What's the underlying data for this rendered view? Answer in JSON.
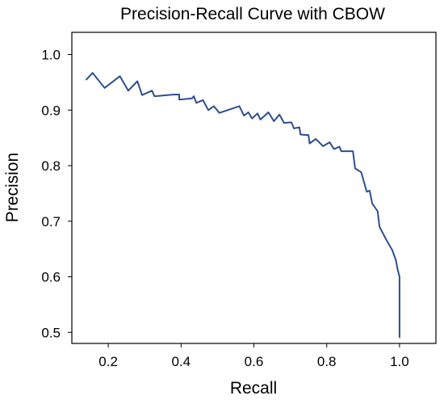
{
  "chart_data": {
    "type": "line",
    "title": "Precision-Recall Curve with CBOW",
    "xlabel": "Recall",
    "ylabel": "Precision",
    "xlim": [
      0.1,
      1.1
    ],
    "ylim": [
      0.48,
      1.04
    ],
    "xticks": [
      0.2,
      0.4,
      0.6,
      0.8,
      1.0
    ],
    "xtick_labels": [
      "0.2",
      "0.4",
      "0.6",
      "0.8",
      "1.0"
    ],
    "yticks": [
      0.5,
      0.6,
      0.7,
      0.8,
      0.9,
      1.0
    ],
    "ytick_labels": [
      "0.5",
      "0.6",
      "0.7",
      "0.8",
      "0.9",
      "1.0"
    ],
    "grid": false,
    "series": [
      {
        "color": "#2d4f8f",
        "points": [
          [
            0.14,
            0.955
          ],
          [
            0.157,
            0.967
          ],
          [
            0.19,
            0.94
          ],
          [
            0.232,
            0.961
          ],
          [
            0.255,
            0.935
          ],
          [
            0.28,
            0.952
          ],
          [
            0.293,
            0.927
          ],
          [
            0.32,
            0.935
          ],
          [
            0.327,
            0.925
          ],
          [
            0.38,
            0.928
          ],
          [
            0.395,
            0.928
          ],
          [
            0.395,
            0.919
          ],
          [
            0.43,
            0.921
          ],
          [
            0.435,
            0.925
          ],
          [
            0.442,
            0.913
          ],
          [
            0.46,
            0.918
          ],
          [
            0.475,
            0.9
          ],
          [
            0.49,
            0.907
          ],
          [
            0.505,
            0.895
          ],
          [
            0.56,
            0.907
          ],
          [
            0.573,
            0.89
          ],
          [
            0.585,
            0.896
          ],
          [
            0.595,
            0.885
          ],
          [
            0.61,
            0.894
          ],
          [
            0.618,
            0.883
          ],
          [
            0.64,
            0.896
          ],
          [
            0.655,
            0.88
          ],
          [
            0.67,
            0.892
          ],
          [
            0.683,
            0.877
          ],
          [
            0.703,
            0.878
          ],
          [
            0.71,
            0.867
          ],
          [
            0.725,
            0.869
          ],
          [
            0.728,
            0.856
          ],
          [
            0.75,
            0.855
          ],
          [
            0.753,
            0.84
          ],
          [
            0.77,
            0.848
          ],
          [
            0.79,
            0.835
          ],
          [
            0.808,
            0.842
          ],
          [
            0.82,
            0.83
          ],
          [
            0.835,
            0.834
          ],
          [
            0.84,
            0.826
          ],
          [
            0.872,
            0.826
          ],
          [
            0.878,
            0.795
          ],
          [
            0.895,
            0.788
          ],
          [
            0.91,
            0.753
          ],
          [
            0.918,
            0.755
          ],
          [
            0.925,
            0.732
          ],
          [
            0.94,
            0.718
          ],
          [
            0.945,
            0.69
          ],
          [
            0.965,
            0.665
          ],
          [
            0.98,
            0.648
          ],
          [
            0.99,
            0.63
          ],
          [
            0.995,
            0.613
          ],
          [
            1.0,
            0.6
          ],
          [
            1.0,
            0.585
          ],
          [
            1.0,
            0.491
          ]
        ]
      }
    ]
  }
}
